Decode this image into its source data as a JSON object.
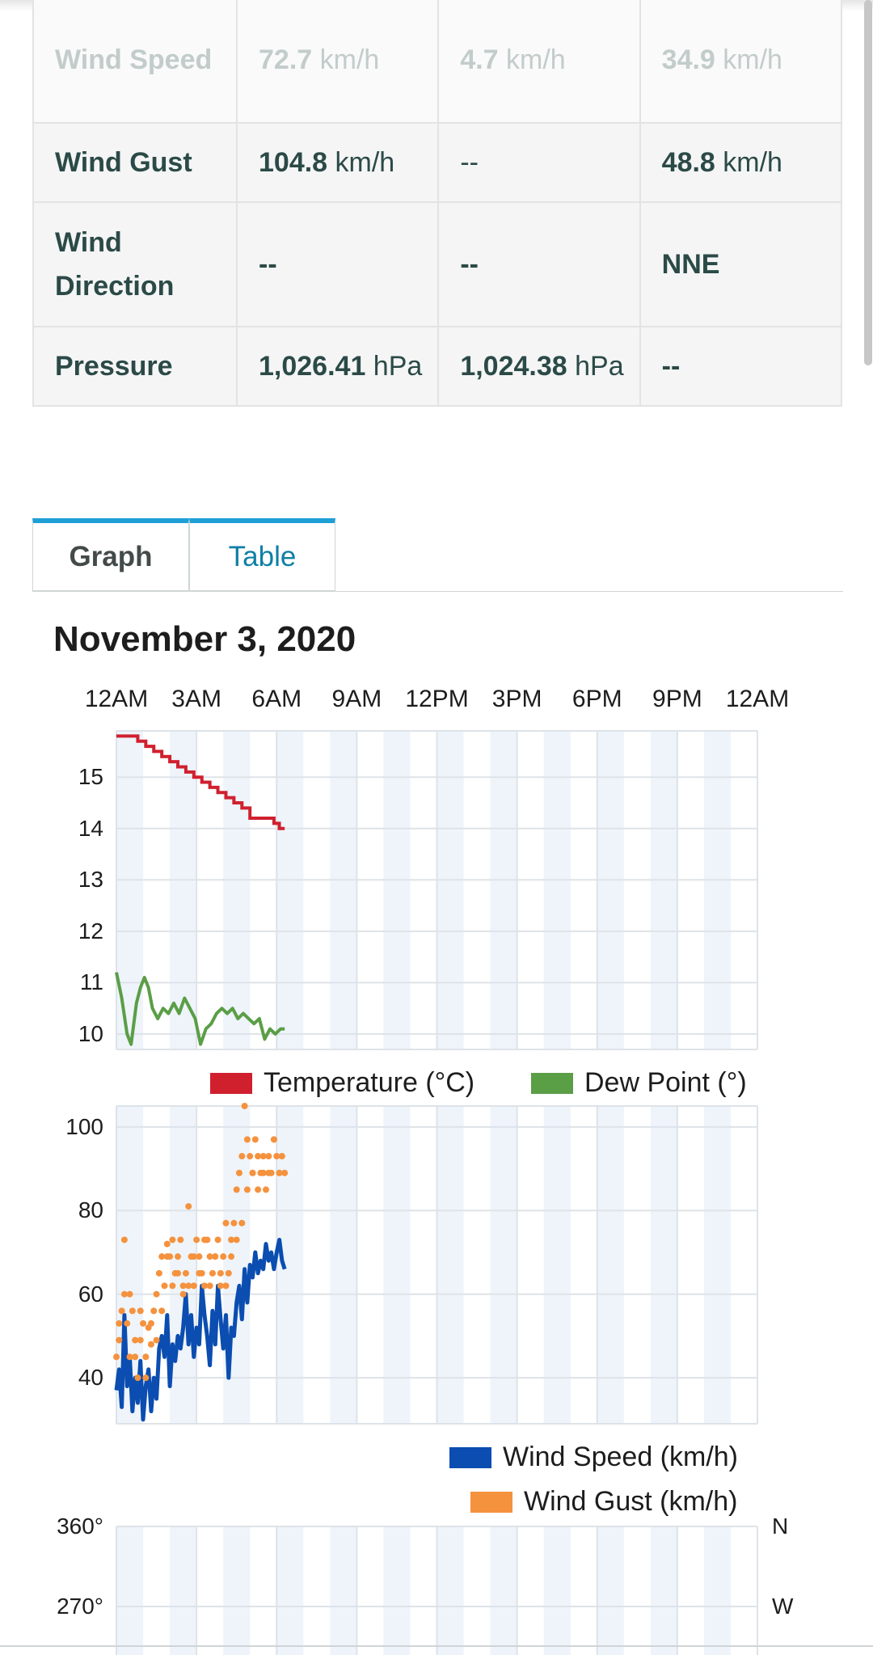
{
  "summary_table": {
    "rows": [
      {
        "label": "Wind Speed",
        "c1": {
          "num": "72.7",
          "unit": " km/h"
        },
        "c2": {
          "num": "4.7",
          "unit": " km/h"
        },
        "c3": {
          "num": "34.9",
          "unit": " km/h"
        }
      },
      {
        "label": "Wind Gust",
        "c1": {
          "num": "104.8",
          "unit": " km/h"
        },
        "c2": {
          "num": "--",
          "unit": ""
        },
        "c3": {
          "num": "48.8",
          "unit": " km/h"
        }
      },
      {
        "label": "Wind Direction",
        "c1": {
          "num": "--",
          "unit": ""
        },
        "c2": {
          "num": "--",
          "unit": ""
        },
        "c3": {
          "num": "NNE",
          "unit": ""
        }
      },
      {
        "label": "Pressure",
        "c1": {
          "num": "1,026.41",
          "unit": " hPa"
        },
        "c2": {
          "num": "1,024.38",
          "unit": " hPa"
        },
        "c3": {
          "num": "--",
          "unit": ""
        }
      }
    ]
  },
  "tabs": {
    "graph": "Graph",
    "table": "Table"
  },
  "date_heading": "November 3, 2020",
  "colors": {
    "temperature": "#d0202e",
    "dew_point": "#5a9e46",
    "wind_speed": "#0b4db0",
    "wind_gust": "#f5923e",
    "band": "#eef4fa",
    "grid": "#dde3e8"
  },
  "chart_data": [
    {
      "type": "line",
      "x_tick_labels": [
        "12AM",
        "3AM",
        "6AM",
        "9AM",
        "12PM",
        "3PM",
        "6PM",
        "9PM",
        "12AM"
      ],
      "xlim_hours": [
        0,
        24
      ],
      "ylim": [
        9.7,
        15.9
      ],
      "y_ticks": [
        "10",
        "11",
        "12",
        "13",
        "14",
        "15"
      ],
      "grid": true,
      "legend_position": "bottom",
      "series": [
        {
          "name": "Temperature (°C)",
          "x": [
            0,
            0.5,
            0.8,
            1.1,
            1.4,
            1.7,
            2.0,
            2.3,
            2.6,
            2.9,
            3.2,
            3.5,
            3.8,
            4.1,
            4.4,
            4.7,
            5.0,
            5.3,
            5.6,
            5.9,
            6.1,
            6.3
          ],
          "y": [
            15.8,
            15.8,
            15.7,
            15.6,
            15.5,
            15.4,
            15.3,
            15.2,
            15.1,
            15.0,
            14.9,
            14.8,
            14.7,
            14.6,
            14.5,
            14.4,
            14.2,
            14.2,
            14.2,
            14.1,
            14.0,
            14.0
          ]
        },
        {
          "name": "Dew Point (°)",
          "x": [
            0,
            0.2,
            0.4,
            0.55,
            0.75,
            0.9,
            1.05,
            1.2,
            1.35,
            1.55,
            1.75,
            1.95,
            2.15,
            2.35,
            2.55,
            2.75,
            2.95,
            3.15,
            3.35,
            3.55,
            3.75,
            3.95,
            4.15,
            4.35,
            4.55,
            4.75,
            4.95,
            5.15,
            5.35,
            5.55,
            5.75,
            5.95,
            6.15,
            6.3
          ],
          "y": [
            11.2,
            10.7,
            10.0,
            9.8,
            10.6,
            10.9,
            11.1,
            10.9,
            10.5,
            10.3,
            10.5,
            10.4,
            10.6,
            10.4,
            10.7,
            10.5,
            10.3,
            9.8,
            10.1,
            10.2,
            10.4,
            10.5,
            10.4,
            10.5,
            10.3,
            10.4,
            10.3,
            10.2,
            10.3,
            9.9,
            10.1,
            10.0,
            10.1,
            10.1
          ]
        }
      ]
    },
    {
      "type": "scatter",
      "x_tick_labels": [
        "12AM",
        "3AM",
        "6AM",
        "9AM",
        "12PM",
        "3PM",
        "6PM",
        "9PM",
        "12AM"
      ],
      "xlim_hours": [
        0,
        24
      ],
      "ylim": [
        29,
        105
      ],
      "y_ticks": [
        "40",
        "60",
        "80",
        "100"
      ],
      "grid": true,
      "legend_position": "bottom-right",
      "series": [
        {
          "name": "Wind Speed (km/h)",
          "style": "line",
          "x": [
            0,
            0.1,
            0.2,
            0.3,
            0.4,
            0.5,
            0.6,
            0.7,
            0.8,
            0.9,
            1.0,
            1.1,
            1.2,
            1.3,
            1.4,
            1.5,
            1.6,
            1.7,
            1.8,
            1.9,
            2.0,
            2.1,
            2.2,
            2.3,
            2.4,
            2.5,
            2.6,
            2.7,
            2.8,
            2.9,
            3.0,
            3.1,
            3.2,
            3.3,
            3.4,
            3.5,
            3.6,
            3.7,
            3.8,
            3.9,
            4.0,
            4.1,
            4.2,
            4.3,
            4.4,
            4.5,
            4.6,
            4.7,
            4.8,
            4.9,
            5.0,
            5.1,
            5.2,
            5.3,
            5.4,
            5.5,
            5.6,
            5.7,
            5.8,
            5.9,
            6.0,
            6.1,
            6.2,
            6.3
          ],
          "y": [
            37,
            42,
            33,
            55,
            38,
            45,
            32,
            40,
            34,
            44,
            30,
            38,
            42,
            32,
            40,
            35,
            47,
            50,
            45,
            55,
            38,
            48,
            44,
            50,
            47,
            52,
            60,
            48,
            55,
            45,
            52,
            48,
            62,
            55,
            50,
            43,
            56,
            48,
            62,
            54,
            47,
            55,
            40,
            52,
            50,
            58,
            62,
            54,
            66,
            58,
            67,
            64,
            70,
            65,
            68,
            66,
            72,
            68,
            70,
            66,
            70,
            73,
            68,
            66
          ]
        },
        {
          "name": "Wind Gust (km/h)",
          "style": "dots",
          "x": [
            0,
            0.1,
            0.2,
            0.3,
            0.4,
            0.5,
            0.6,
            0.7,
            0.8,
            0.9,
            1.0,
            1.1,
            1.2,
            1.3,
            1.4,
            1.5,
            1.6,
            1.7,
            1.8,
            1.9,
            2.0,
            2.1,
            2.2,
            2.3,
            2.4,
            2.5,
            2.6,
            2.7,
            2.8,
            2.9,
            3.0,
            3.1,
            3.2,
            3.3,
            3.4,
            3.5,
            3.6,
            3.7,
            3.8,
            3.9,
            4.0,
            4.1,
            4.2,
            4.3,
            4.4,
            4.5,
            4.6,
            4.7,
            4.8,
            4.9,
            5.0,
            5.1,
            5.2,
            5.3,
            5.4,
            5.5,
            5.6,
            5.7,
            5.8,
            5.9,
            6.0,
            6.1,
            6.2,
            6.3,
            0.1,
            0.3,
            0.5,
            0.7,
            0.9,
            1.1,
            1.3,
            1.5,
            1.7,
            1.9,
            2.1,
            2.3,
            2.5,
            2.7,
            2.9,
            3.1,
            3.3,
            3.5,
            3.7,
            3.9,
            4.1,
            4.3,
            4.5,
            4.7,
            4.9,
            5.1,
            5.3,
            5.5,
            5.7,
            5.9,
            6.1
          ],
          "y": [
            45,
            49,
            56,
            73,
            53,
            60,
            56,
            45,
            40,
            49,
            53,
            45,
            52,
            48,
            56,
            60,
            65,
            69,
            62,
            72,
            69,
            73,
            65,
            69,
            73,
            62,
            65,
            81,
            69,
            62,
            73,
            69,
            65,
            62,
            73,
            69,
            65,
            69,
            73,
            62,
            69,
            77,
            65,
            73,
            77,
            85,
            89,
            93,
            105,
            97,
            93,
            89,
            97,
            93,
            89,
            89,
            85,
            93,
            89,
            97,
            93,
            89,
            93,
            89,
            53,
            60,
            45,
            49,
            56,
            40,
            53,
            49,
            56,
            69,
            62,
            65,
            60,
            62,
            69,
            65,
            73,
            62,
            69,
            65,
            62,
            69,
            73,
            77,
            85,
            89,
            85,
            93,
            89,
            97,
            89
          ]
        }
      ]
    },
    {
      "type": "scatter",
      "x_tick_labels": [],
      "ylim": [
        250,
        360
      ],
      "y_ticks": [
        "360°",
        "270°"
      ],
      "y_ticks_right": [
        "N",
        "W"
      ],
      "grid": true,
      "series": []
    }
  ]
}
